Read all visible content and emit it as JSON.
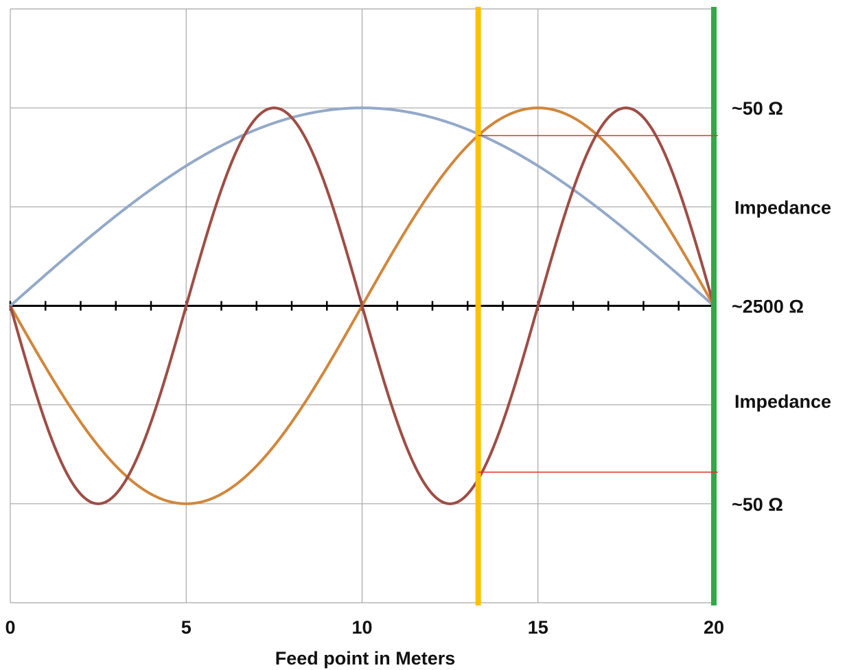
{
  "chart_data": {
    "type": "line",
    "title": "",
    "xlabel": "Feed point in Meters",
    "ylabel": "",
    "xlim": [
      0,
      20
    ],
    "ylim": [
      -1.5,
      1.5
    ],
    "x_ticks": [
      "0",
      "5",
      "10",
      "15",
      "20"
    ],
    "grid": true,
    "minor_ticks_on_zero_axis": 20,
    "series": [
      {
        "color": "#93a9c9",
        "x_start": 0,
        "x_end": 20,
        "function": "sin",
        "period_m": 40,
        "amplitude": 1
      },
      {
        "color": "#d0873c",
        "x_start": 0,
        "x_end": 20,
        "function": "-sin",
        "period_m": 20,
        "amplitude": 1
      },
      {
        "color": "#9e4d45",
        "x_start": 0,
        "x_end": 20,
        "function": "-sin",
        "period_m": 10,
        "amplitude": 1
      }
    ],
    "markers": [
      {
        "type": "vline",
        "x": 13.3,
        "color": "#ffc000"
      },
      {
        "type": "vline",
        "x": 20,
        "color": "#2eaa48"
      },
      {
        "type": "hline_segment",
        "x_start": 13.3,
        "x_end": 20,
        "y": 0.86,
        "color": "#e0302a"
      },
      {
        "type": "hline_segment",
        "x_start": 13.3,
        "x_end": 20,
        "y": -0.84,
        "color": "#e0302a"
      }
    ],
    "right_labels": [
      {
        "text": "~50 Ω",
        "y": 1
      },
      {
        "text": "Impedance",
        "y": 0.5
      },
      {
        "text": "~2500 Ω",
        "y": 0
      },
      {
        "text": "Impedance",
        "y": -0.48
      },
      {
        "text": "~50 Ω",
        "y": -1
      }
    ]
  }
}
